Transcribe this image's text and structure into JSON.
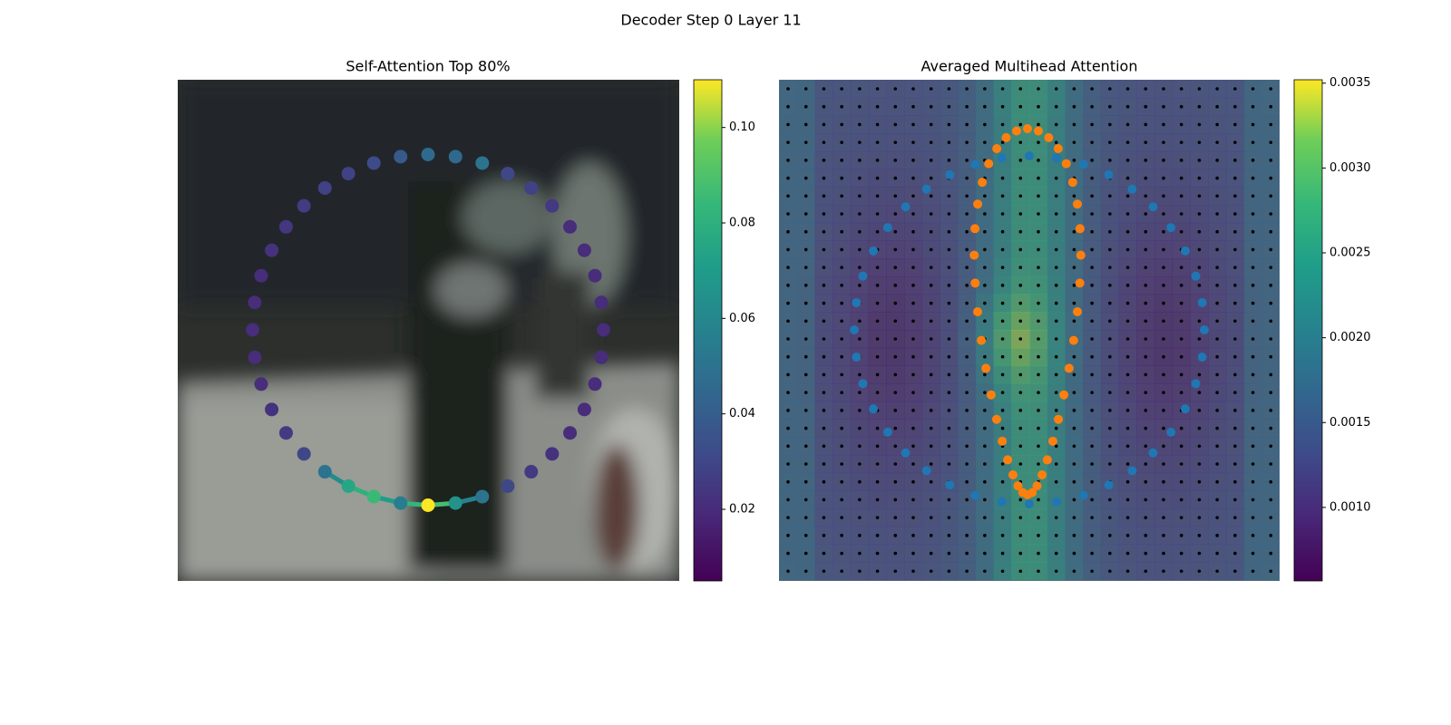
{
  "title": "Decoder Step 0 Layer 11",
  "chart_data": [
    {
      "type": "scatter",
      "title": "Self-Attention Top 80%",
      "values": [
        0.045,
        0.045,
        0.05,
        0.03,
        0.028,
        0.025,
        0.02,
        0.02,
        0.02,
        0.02,
        0.02,
        0.02,
        0.02,
        0.02,
        0.02,
        0.022,
        0.025,
        0.03,
        0.05,
        0.065,
        0.11,
        0.055,
        0.085,
        0.075,
        0.05,
        0.03,
        0.025,
        0.022,
        0.02,
        0.02,
        0.02,
        0.02,
        0.02,
        0.022,
        0.024,
        0.026,
        0.028,
        0.028,
        0.032,
        0.038
      ],
      "colormap": "viridis",
      "ylim": [
        0.005,
        0.11
      ],
      "yticks": [
        0.02,
        0.04,
        0.06,
        0.08,
        {
          "value": 0.1,
          "label": "0.10"
        }
      ]
    },
    {
      "type": "heatmap",
      "title": "Averaged Multihead Attention",
      "colormap": "viridis",
      "ylim": [
        0.000567,
        0.00352
      ],
      "yticks": [
        {
          "value": 0.001,
          "label": "0.0010"
        },
        0.0015,
        {
          "value": 0.002,
          "label": "0.0020"
        },
        0.0025,
        {
          "value": 0.003,
          "label": "0.0030"
        },
        0.0035
      ]
    }
  ]
}
